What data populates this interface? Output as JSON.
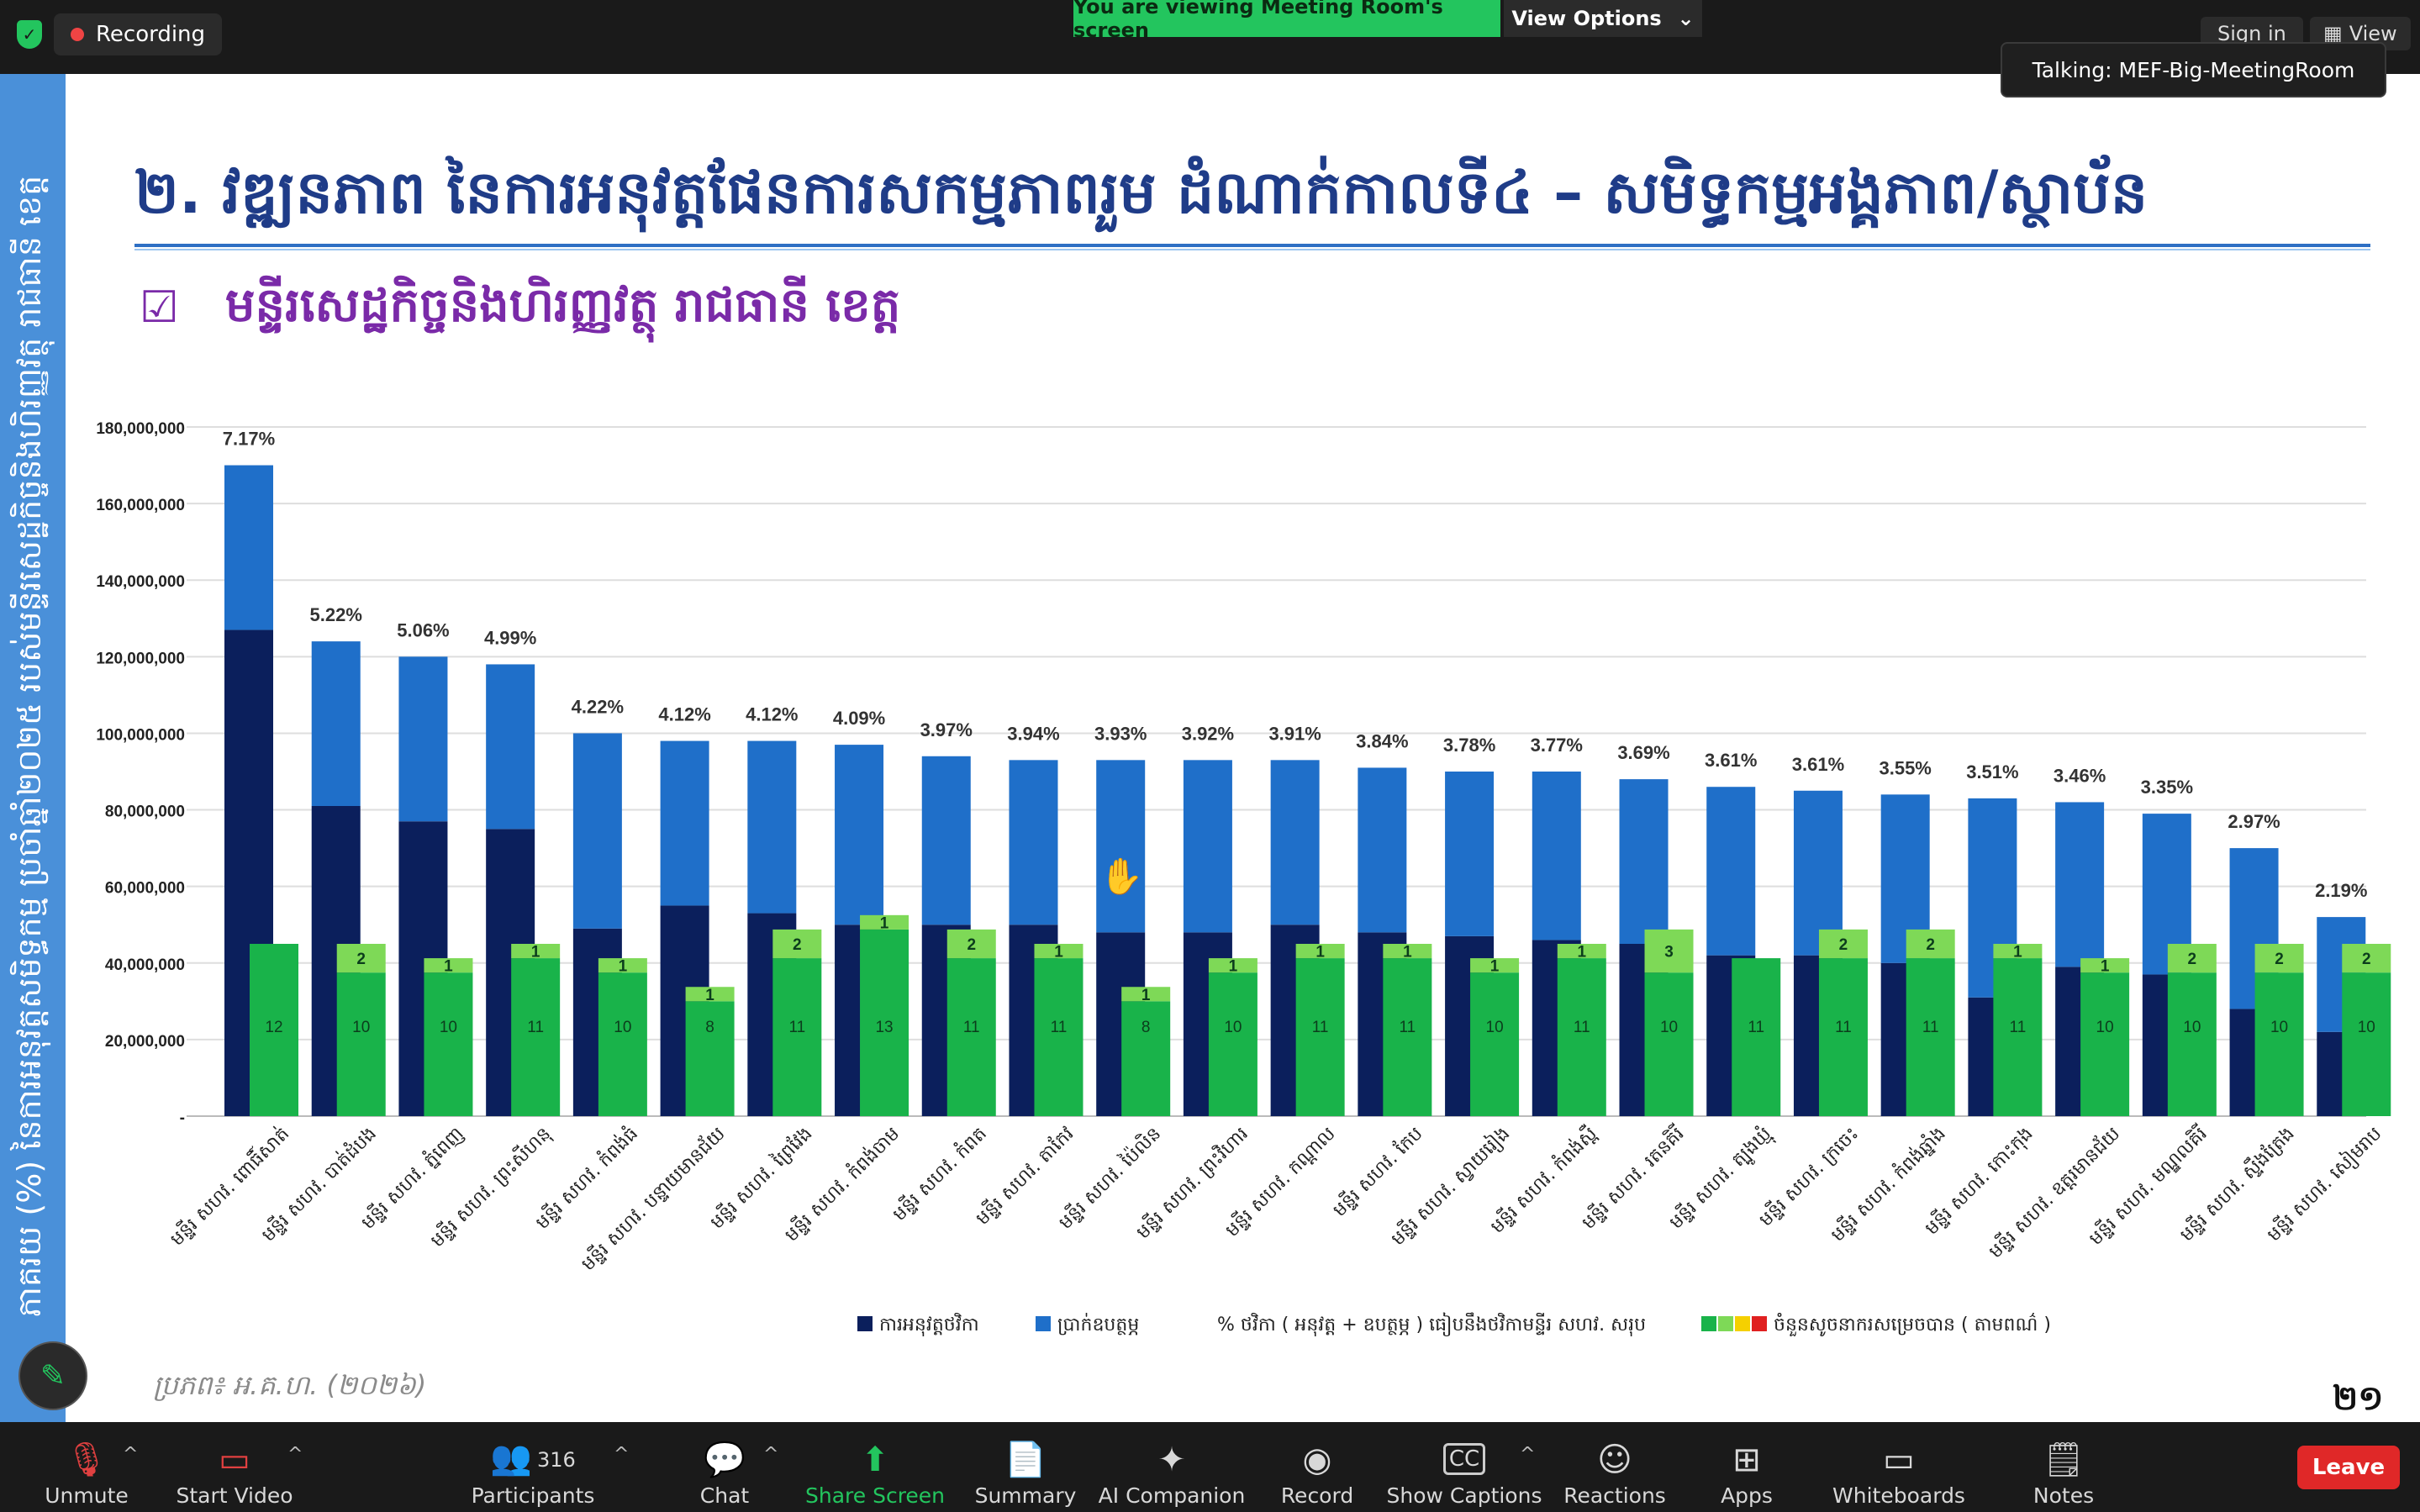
{
  "topbar": {
    "recording_label": "Recording",
    "viewing_banner": "You are viewing Meeting Room's screen",
    "view_options_label": "View Options",
    "sign_in_label": "Sign in",
    "view_label": "View",
    "talking_label": "Talking: MEF-Big-MeetingRoom"
  },
  "slide": {
    "title": "២. វឌ្ឍនភាព នៃការអនុវត្តផែនការសកម្មភាពរួម ដំណាក់កាលទី៤ – សមិទ្ធកម្មអង្គភាព/ស្ថាប័ន",
    "subtitle": "មន្ទីរសេដ្ឋកិច្ចនិងហិរញ្ញវត្ថុ រាជធានី ខេត្ត",
    "sidebar_text": "ភាគរយ (%) នៃការអនុវត្តសមិទ្ធកម្ម ប្រចាំឆ្នាំ២០២៥ របស់មន្ទីរសេដ្ឋកិច្ចនិងហិរញ្ញវត្ថុ រាជធានី ខេត្ត",
    "source": "ប្រភព៖ អ.គ.ហ. (២០២៦)",
    "page_number": "២១",
    "colors": {
      "exec": "#0b1f5c",
      "budget": "#1f6fc9",
      "kpi": "#19b34a",
      "kpi_top": "#7ed957"
    }
  },
  "chart_data": {
    "type": "bar",
    "ylim": [
      0,
      180000000
    ],
    "y_ticks": [
      "-",
      "20,000,000",
      "40,000,000",
      "60,000,000",
      "80,000,000",
      "100,000,000",
      "120,000,000",
      "140,000,000",
      "160,000,000",
      "180,000,000"
    ],
    "categories": [
      "មន្ទីរ សហវ. ពោធិ៍សាត់",
      "មន្ទីរ សហវ. បាត់ដំបង",
      "មន្ទីរ សហវ. ភ្នំពេញ",
      "មន្ទីរ សហវ. ព្រះសីហនុ",
      "មន្ទីរ សហវ. កំពង់ធំ",
      "មន្ទីរ សហវ. បន្ទាយមានជ័យ",
      "មន្ទីរ សហវ. ព្រៃវែង",
      "មន្ទីរ សហវ. កំពង់ចាម",
      "មន្ទីរ សហវ. កំពត",
      "មន្ទីរ សហវ. តាកែវ",
      "មន្ទីរ សហវ. ប៉ៃលិន",
      "មន្ទីរ សហវ. ព្រះវិហារ",
      "មន្ទីរ សហវ. កណ្ដាល",
      "មន្ទីរ សហវ. កែប",
      "មន្ទីរ សហវ. ស្វាយរៀង",
      "មន្ទីរ សហវ. កំពង់ស្ពឺ",
      "មន្ទីរ សហវ. រតនគិរី",
      "មន្ទីរ សហវ. ត្បូងឃ្មុំ",
      "មន្ទីរ សហវ. ក្រចេះ",
      "មន្ទីរ សហវ. កំពង់ឆ្នាំង",
      "មន្ទីរ សហវ. កោះកុង",
      "មន្ទីរ សហវ. ឧត្ដរមានជ័យ",
      "មន្ទីរ សហវ. មណ្ឌលគិរី",
      "មន្ទីរ សហវ. ស្ទឹងត្រែង",
      "មន្ទីរ សហវ. សៀមរាប"
    ],
    "series": [
      {
        "name": "ការអនុវត្តថវិកា",
        "values": [
          127000000,
          81000000,
          77000000,
          75000000,
          49000000,
          55000000,
          53000000,
          50000000,
          50000000,
          50000000,
          48000000,
          48000000,
          50000000,
          48000000,
          47000000,
          46000000,
          45000000,
          42000000,
          42000000,
          40000000,
          31000000,
          39000000,
          37000000,
          28000000,
          22000000
        ]
      },
      {
        "name": "ប្រាក់ឧបត្ថម្ភ",
        "values": [
          43000000,
          43000000,
          43000000,
          43000000,
          51000000,
          43000000,
          45000000,
          47000000,
          44000000,
          43000000,
          45000000,
          45000000,
          43000000,
          43000000,
          43000000,
          44000000,
          43000000,
          44000000,
          43000000,
          44000000,
          52000000,
          43000000,
          42000000,
          42000000,
          30000000
        ]
      },
      {
        "name": "ចំនួនសូចនាករសម្រេចបាន ( តាមពណ៌ )",
        "values": [
          12,
          10,
          10,
          11,
          10,
          8,
          11,
          13,
          11,
          11,
          8,
          10,
          11,
          11,
          10,
          11,
          10,
          11,
          11,
          11,
          11,
          10,
          10,
          10,
          10
        ]
      },
      {
        "name": "top_indicators",
        "values": [
          0,
          2,
          1,
          1,
          1,
          1,
          2,
          1,
          2,
          1,
          1,
          1,
          1,
          1,
          1,
          1,
          3,
          0,
          2,
          2,
          1,
          1,
          2,
          2,
          2
        ]
      }
    ],
    "percent_labels": [
      "7.17%",
      "5.22%",
      "5.06%",
      "4.99%",
      "4.22%",
      "4.12%",
      "4.12%",
      "4.09%",
      "3.97%",
      "3.94%",
      "3.93%",
      "3.92%",
      "3.91%",
      "3.84%",
      "3.78%",
      "3.77%",
      "3.69%",
      "3.61%",
      "3.61%",
      "3.55%",
      "3.51%",
      "3.46%",
      "3.35%",
      "2.97%",
      "2.19%"
    ],
    "legend": {
      "exec": "ការអនុវត្តថវិកា",
      "budget": "ប្រាក់ឧបត្ថម្ភ",
      "percent": "% ថវិកា ( អនុវត្ត + ឧបត្ថម្ភ ) ធៀបនឹងថវិកាមន្ទីរ សហវ. សរុប",
      "indicators": "ចំនួនសូចនាករសម្រេចបាន ( តាមពណ៌ )"
    }
  },
  "toolbar": {
    "unmute": "Unmute",
    "start_video": "Start Video",
    "participants": "Participants",
    "participants_count": "316",
    "chat": "Chat",
    "share_screen": "Share Screen",
    "summary": "Summary",
    "ai_companion": "AI Companion",
    "record": "Record",
    "show_captions": "Show Captions",
    "reactions": "Reactions",
    "apps": "Apps",
    "whiteboards": "Whiteboards",
    "notes": "Notes",
    "leave": "Leave"
  }
}
